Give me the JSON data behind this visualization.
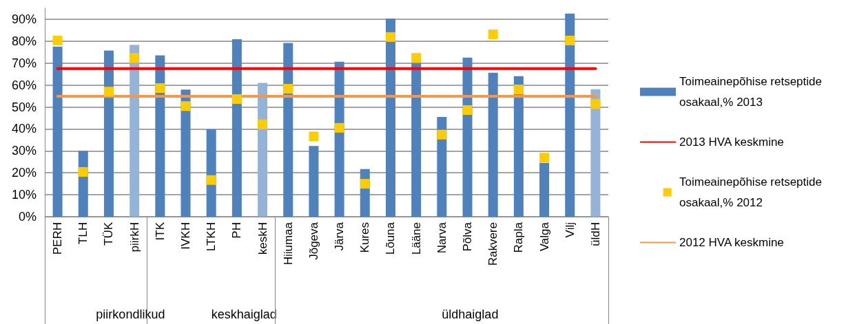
{
  "chart_data": {
    "type": "bar",
    "categories": [
      "PERH",
      "TLH",
      "TÜK",
      "piirkH",
      "ITK",
      "IVKH",
      "LTKH",
      "PH",
      "keskH",
      "Hiiumaa",
      "Jõgeva",
      "Järva",
      "Kures",
      "Lõuna",
      "Lääne",
      "Narva",
      "Põlva",
      "Rakvere",
      "Rapla",
      "Valga",
      "Vilj",
      "üldH"
    ],
    "series": [
      {
        "name": "Toimeainepõhise retseptide osakaal,% 2013",
        "color": "#4f81bd",
        "colors": [
          "#4f81bd",
          "#4f81bd",
          "#4f81bd",
          "#95b3d7",
          "#4f81bd",
          "#4f81bd",
          "#4f81bd",
          "#4f81bd",
          "#95b3d7",
          "#4f81bd",
          "#4f81bd",
          "#4f81bd",
          "#4f81bd",
          "#4f81bd",
          "#4f81bd",
          "#4f81bd",
          "#4f81bd",
          "#4f81bd",
          "#4f81bd",
          "#4f81bd",
          "#4f81bd",
          "#95b3d7"
        ],
        "values": [
          77.5,
          30,
          75.7,
          78.3,
          73.5,
          57.9,
          39.8,
          80.9,
          61,
          79.2,
          32.2,
          70.6,
          21.7,
          90.3,
          70,
          45.5,
          72.5,
          65.6,
          64,
          24.5,
          92.6,
          58.1
        ]
      },
      {
        "name": "2013 HVA keskmine",
        "type": "line",
        "color": "#ff0000",
        "marker": "none",
        "values": [
          67.5,
          67.5,
          67.5,
          67.5,
          67.5,
          67.5,
          67.5,
          67.5,
          67.5,
          67.5,
          67.5,
          67.5,
          67.5,
          67.5,
          67.5,
          67.5,
          67.5,
          67.5,
          67.5,
          67.5,
          67.5,
          67.5
        ]
      },
      {
        "name": "Toimeainepõhise retseptide osakaal,% 2012",
        "type": "scatter",
        "color": "#ffcc00",
        "marker": "square",
        "values": [
          80.3,
          20.4,
          57,
          72.4,
          58.6,
          50.4,
          16.7,
          53.6,
          42.1,
          58.3,
          36.6,
          40.5,
          15,
          81.9,
          72.4,
          37.4,
          48.6,
          83.1,
          58,
          26.9,
          80.3,
          51.3
        ]
      },
      {
        "name": "2012 HVA keskmine",
        "type": "line",
        "color": "#f79646",
        "marker": "none",
        "values": [
          54.9,
          54.9,
          54.9,
          54.9,
          54.9,
          54.9,
          54.9,
          54.9,
          54.9,
          54.9,
          54.9,
          54.9,
          54.9,
          54.9,
          54.9,
          54.9,
          54.9,
          54.9,
          54.9,
          54.9,
          54.9,
          54.9
        ]
      }
    ],
    "annotations": [
      "piirkondlikud",
      "keskhaiglad",
      "üldhaiglad"
    ],
    "ylim": [
      0,
      95
    ],
    "yticks": [
      {
        "value": 0,
        "label": "0%"
      },
      {
        "value": 10,
        "label": "10%"
      },
      {
        "value": 20,
        "label": "20%"
      },
      {
        "value": 30,
        "label": "30%"
      },
      {
        "value": 40,
        "label": "40%"
      },
      {
        "value": 50,
        "label": "50%"
      },
      {
        "value": 60,
        "label": "60%"
      },
      {
        "value": 70,
        "label": "70%"
      },
      {
        "value": 80,
        "label": "80%"
      },
      {
        "value": 90,
        "label": "90%"
      }
    ],
    "grid": "y",
    "legend": "right"
  }
}
